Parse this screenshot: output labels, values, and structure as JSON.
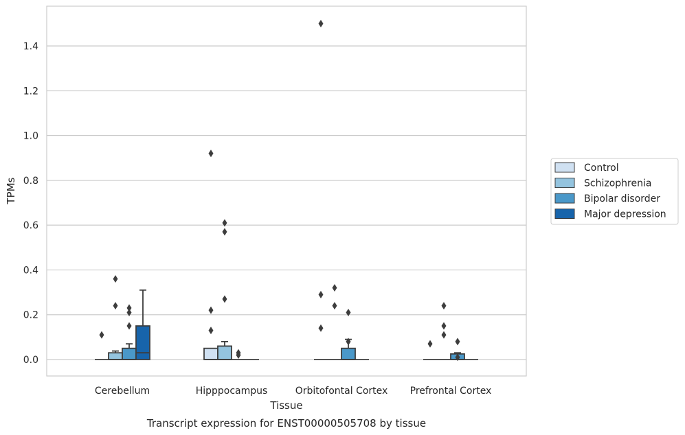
{
  "chart_data": {
    "type": "box",
    "title": "",
    "caption": "Transcript expression for ENST00000505708 by tissue",
    "xlabel": "Tissue",
    "ylabel": "TPMs",
    "ylim": [
      -0.075,
      1.56
    ],
    "yticks": [
      0.0,
      0.2,
      0.4,
      0.6,
      0.8,
      1.0,
      1.2,
      1.4
    ],
    "ytick_labels": [
      "0.0",
      "0.2",
      "0.4",
      "0.6",
      "0.8",
      "1.0",
      "1.2",
      "1.4"
    ],
    "grid": "horizontal",
    "legend_placement": "right",
    "categories": [
      "Cerebellum",
      "Hipppocampus",
      "Orbitofontal Cortex",
      "Prefrontal Cortex"
    ],
    "series": [
      {
        "name": "Control",
        "color": "#d0e1f2",
        "boxes": [
          {
            "q1": 0,
            "median": 0,
            "q3": 0,
            "whisker_low": 0,
            "whisker_high": 0,
            "outliers": [
              0.11
            ]
          },
          {
            "q1": 0,
            "median": 0,
            "q3": 0.05,
            "whisker_low": 0,
            "whisker_high": 0.05,
            "outliers": [
              0.22,
              0.13,
              0.92
            ]
          },
          {
            "q1": 0,
            "median": 0,
            "q3": 0,
            "whisker_low": 0,
            "whisker_high": 0,
            "outliers": [
              0.14,
              0.29,
              1.5
            ]
          },
          {
            "q1": 0,
            "median": 0,
            "q3": 0,
            "whisker_low": 0,
            "whisker_high": 0,
            "outliers": [
              0.07
            ]
          }
        ]
      },
      {
        "name": "Schizophrenia",
        "color": "#94c4df",
        "boxes": [
          {
            "q1": 0,
            "median": 0,
            "q3": 0.03,
            "whisker_low": 0,
            "whisker_high": 0.038,
            "outliers": [
              0.36,
              0.24
            ]
          },
          {
            "q1": 0,
            "median": 0,
            "q3": 0.06,
            "whisker_low": 0,
            "whisker_high": 0.08,
            "outliers": [
              0.27,
              0.57,
              0.61
            ]
          },
          {
            "q1": 0,
            "median": 0,
            "q3": 0,
            "whisker_low": 0,
            "whisker_high": 0,
            "outliers": [
              0.32,
              0.24
            ]
          },
          {
            "q1": 0,
            "median": 0,
            "q3": 0,
            "whisker_low": 0,
            "whisker_high": 0,
            "outliers": [
              0.24,
              0.15,
              0.11
            ]
          }
        ]
      },
      {
        "name": "Bipolar disorder",
        "color": "#4a98c9",
        "boxes": [
          {
            "q1": 0,
            "median": 0,
            "q3": 0.05,
            "whisker_low": 0,
            "whisker_high": 0.07,
            "outliers": [
              0.23,
              0.21,
              0.15
            ]
          },
          {
            "q1": 0,
            "median": 0,
            "q3": 0,
            "whisker_low": 0,
            "whisker_high": 0,
            "outliers": [
              0.03,
              0.02
            ]
          },
          {
            "q1": 0,
            "median": 0,
            "q3": 0.05,
            "whisker_low": 0,
            "whisker_high": 0.09,
            "outliers": [
              0.21,
              0.08
            ]
          },
          {
            "q1": 0,
            "median": 0,
            "q3": 0.025,
            "whisker_low": 0,
            "whisker_high": 0.03,
            "outliers": [
              0.08,
              0.01
            ]
          }
        ]
      },
      {
        "name": "Major depression",
        "color": "#1764ab",
        "boxes": [
          {
            "q1": 0,
            "median": 0.03,
            "q3": 0.15,
            "whisker_low": 0,
            "whisker_high": 0.31,
            "outliers": []
          },
          {
            "q1": 0,
            "median": 0,
            "q3": 0,
            "whisker_low": 0,
            "whisker_high": 0,
            "outliers": []
          },
          {
            "q1": 0,
            "median": 0,
            "q3": 0,
            "whisker_low": 0,
            "whisker_high": 0,
            "outliers": []
          },
          {
            "q1": 0,
            "median": 0,
            "q3": 0,
            "whisker_low": 0,
            "whisker_high": 0,
            "outliers": []
          }
        ]
      }
    ]
  }
}
